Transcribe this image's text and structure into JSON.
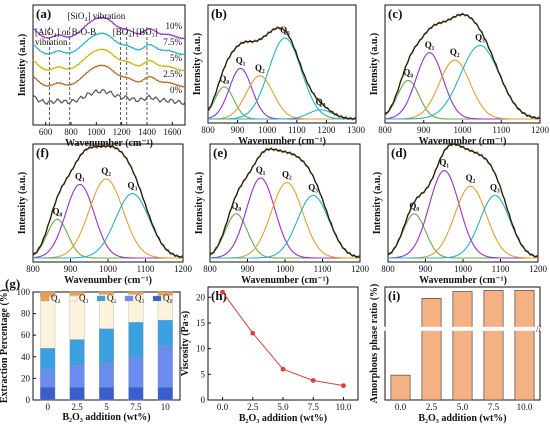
{
  "chart_data": [
    {
      "id": "a",
      "type": "line",
      "letter": "(a)",
      "xlabel": "Wavenumber (cm⁻¹)",
      "ylabel": "Intensity (a.u.)",
      "xlim": [
        500,
        1700
      ],
      "xticks": [
        600,
        800,
        1000,
        1200,
        1400,
        1600
      ],
      "series": [
        {
          "name": "0%",
          "color": "#555555",
          "offset": 0
        },
        {
          "name": "2.5%",
          "color": "#b5651d",
          "offset": 1
        },
        {
          "name": "5%",
          "color": "#c8b400",
          "offset": 2
        },
        {
          "name": "7.5%",
          "color": "#2ab0c0",
          "offset": 3
        },
        {
          "name": "10%",
          "color": "#9b30c8",
          "offset": 4
        }
      ],
      "annotations": [
        "[AlO₄] or B-O-B vibration",
        "[SiO₄] vibration",
        "[BO₄]",
        "[BO₃]"
      ],
      "dashed_lines_x": [
        630,
        790,
        1190,
        1240,
        1400
      ]
    },
    {
      "id": "b",
      "type": "line",
      "letter": "(b)",
      "xlabel": "Wavenumber (cm⁻¹)",
      "ylabel": "Intensity (a.u.)",
      "xlim": [
        800,
        1300
      ],
      "xticks": [
        800,
        900,
        1000,
        1100,
        1200,
        1300
      ],
      "peaks": [
        {
          "label": "Q₀",
          "center": 855,
          "height": 0.35,
          "width": 32,
          "color": "#6aa84f"
        },
        {
          "label": "Q₁",
          "center": 910,
          "height": 0.55,
          "width": 38,
          "color": "#9b30c8"
        },
        {
          "label": "Q₂",
          "center": 975,
          "height": 0.47,
          "width": 45,
          "color": "#e0a030"
        },
        {
          "label": "Q₃",
          "center": 1060,
          "height": 0.88,
          "width": 55,
          "color": "#2ab0c0"
        },
        {
          "label": "Q₄",
          "center": 1180,
          "height": 0.1,
          "width": 40,
          "color": "#2ab0c0"
        }
      ]
    },
    {
      "id": "c",
      "type": "line",
      "letter": "(c)",
      "xlabel": "Wavenumber (cm⁻¹)",
      "ylabel": "Intensity (a.u.)",
      "xlim": [
        800,
        1200
      ],
      "xticks": [
        800,
        900,
        1000,
        1100,
        1200
      ],
      "peaks": [
        {
          "label": "Q₀",
          "center": 860,
          "height": 0.42,
          "width": 28,
          "color": "#6aa84f"
        },
        {
          "label": "Q₁",
          "center": 915,
          "height": 0.72,
          "width": 35,
          "color": "#9b30c8"
        },
        {
          "label": "Q₂",
          "center": 980,
          "height": 0.64,
          "width": 40,
          "color": "#e0a030"
        },
        {
          "label": "Q₃",
          "center": 1045,
          "height": 0.8,
          "width": 50,
          "color": "#2ab0c0"
        }
      ]
    },
    {
      "id": "f",
      "type": "line",
      "letter": "(f)",
      "xlabel": "Wavenumber (cm⁻¹)",
      "ylabel": "Intensity (a.u.)",
      "xlim": [
        800,
        1200
      ],
      "xticks": [
        800,
        900,
        1000,
        1100,
        1200
      ],
      "peaks": [
        {
          "label": "Q₀",
          "center": 865,
          "height": 0.42,
          "width": 28,
          "color": "#6aa84f"
        },
        {
          "label": "Q₁",
          "center": 925,
          "height": 0.8,
          "width": 38,
          "color": "#9b30c8"
        },
        {
          "label": "Q₂",
          "center": 995,
          "height": 0.86,
          "width": 45,
          "color": "#e0a030"
        },
        {
          "label": "Q₃",
          "center": 1065,
          "height": 0.7,
          "width": 45,
          "color": "#2ab0c0"
        }
      ]
    },
    {
      "id": "e",
      "type": "line",
      "letter": "(e)",
      "xlabel": "Wavenumber (cm⁻¹)",
      "ylabel": "Intensity (a.u.)",
      "xlim": [
        800,
        1200
      ],
      "xticks": [
        800,
        900,
        1000,
        1100,
        1200
      ],
      "peaks": [
        {
          "label": "Q₀",
          "center": 870,
          "height": 0.48,
          "width": 30,
          "color": "#6aa84f"
        },
        {
          "label": "Q₁",
          "center": 935,
          "height": 0.87,
          "width": 38,
          "color": "#9b30c8"
        },
        {
          "label": "Q₂",
          "center": 1005,
          "height": 0.82,
          "width": 42,
          "color": "#e0a030"
        },
        {
          "label": "Q₃",
          "center": 1075,
          "height": 0.68,
          "width": 42,
          "color": "#2ab0c0"
        }
      ]
    },
    {
      "id": "d",
      "type": "line",
      "letter": "(d)",
      "xlabel": "Wavenumber (cm⁻¹)",
      "ylabel": "Intensity (a.u.)",
      "xlim": [
        800,
        1200
      ],
      "xticks": [
        800,
        900,
        1000,
        1100,
        1200
      ],
      "peaks": [
        {
          "label": "Q₀",
          "center": 870,
          "height": 0.48,
          "width": 30,
          "color": "#6aa84f"
        },
        {
          "label": "Q₁",
          "center": 950,
          "height": 0.95,
          "width": 40,
          "color": "#9b30c8"
        },
        {
          "label": "Q₂",
          "center": 1020,
          "height": 0.78,
          "width": 42,
          "color": "#e0a030"
        },
        {
          "label": "Q₃",
          "center": 1085,
          "height": 0.68,
          "width": 40,
          "color": "#2ab0c0"
        }
      ]
    },
    {
      "id": "g",
      "type": "bar",
      "stacked": true,
      "letter": "(g)",
      "xlabel": "B₂O₃ addition (wt%)",
      "ylabel": "Extraction Percentage (%)",
      "categories": [
        "0",
        "2.5",
        "5",
        "7.5",
        "10"
      ],
      "ylim": [
        0,
        100
      ],
      "yticks": [
        0,
        20,
        40,
        60,
        80,
        100
      ],
      "legend": "top",
      "series": [
        {
          "name": "Q₀",
          "color": "#3a5fcd",
          "values": [
            12,
            12,
            12,
            12,
            12
          ]
        },
        {
          "name": "Q₁",
          "color": "#6a8cf0",
          "values": [
            16,
            20,
            22,
            28,
            38
          ]
        },
        {
          "name": "Q₂",
          "color": "#3aa0e0",
          "values": [
            20,
            24,
            32,
            32,
            24
          ]
        },
        {
          "name": "Q₃",
          "color": "#fdf3dc",
          "values": [
            48,
            41,
            32,
            26,
            23
          ]
        },
        {
          "name": "Q₄",
          "color": "#e8a050",
          "values": [
            4,
            3,
            2,
            2,
            3
          ]
        }
      ]
    },
    {
      "id": "h",
      "type": "line",
      "letter": "(h)",
      "xlabel": "B₂O₃ addition (wt%)",
      "ylabel": "Viscosity (Pa·s)",
      "x": [
        0.0,
        2.5,
        5.0,
        7.5,
        10.0
      ],
      "y": [
        21,
        13,
        6,
        3.8,
        2.8
      ],
      "xlim": [
        -1.2,
        11.2
      ],
      "ylim": [
        0,
        22
      ],
      "xticks": [
        "0.0",
        "2.5",
        "5.0",
        "7.5",
        "10.0"
      ],
      "yticks": [
        0,
        5,
        10,
        15,
        20
      ],
      "color": "#d94040"
    },
    {
      "id": "i",
      "type": "bar",
      "letter": "(i)",
      "xlabel": "B₂O₃ addition (wt%)",
      "ylabel": "Amorphous phase ratio (%)",
      "categories": [
        "0.0",
        "2.5",
        "5.0",
        "7.5",
        "10.0"
      ],
      "values": [
        22,
        90,
        96,
        97,
        97
      ],
      "ylim": [
        0,
        100
      ],
      "broken_axis": true,
      "color": "#f4b183"
    }
  ]
}
